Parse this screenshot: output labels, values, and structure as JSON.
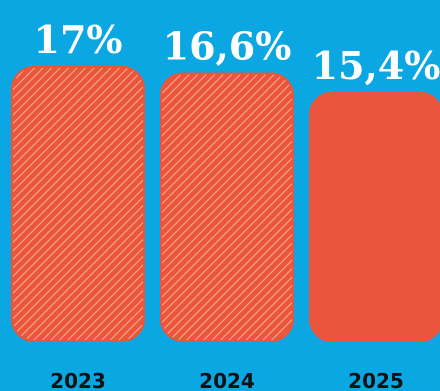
{
  "chart_data": {
    "type": "bar",
    "categories": [
      "2023",
      "2024",
      "2025"
    ],
    "values": [
      17,
      16.6,
      15.4
    ],
    "value_labels": [
      "17%",
      "16,6%",
      "15,4%"
    ],
    "series": [
      {
        "name": "",
        "values": [
          17,
          16.6,
          15.4
        ]
      }
    ],
    "title": "",
    "xlabel": "",
    "ylabel": "",
    "ylim": [
      0,
      17
    ],
    "grid": false,
    "legend": "none",
    "styles": [
      "hatched",
      "hatched",
      "solid"
    ]
  },
  "colors": {
    "background": "#0aa7e2",
    "bar_fill": "#ea553b",
    "hatch_light": "#f6b19b",
    "label_white": "#ffffff",
    "year_text": "#111111"
  }
}
